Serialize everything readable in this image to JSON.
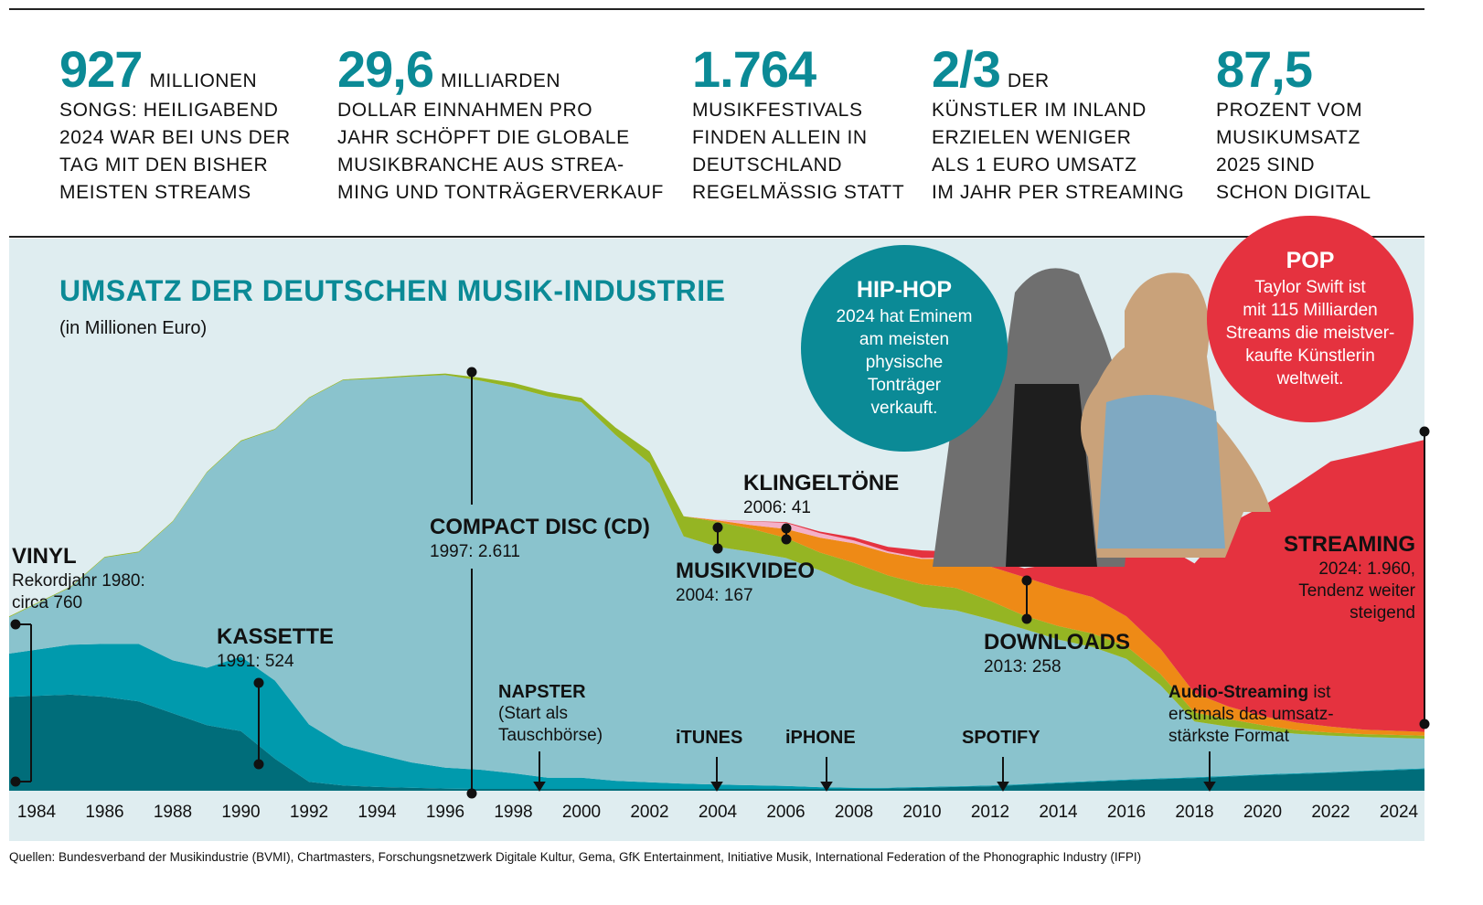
{
  "stats": [
    {
      "value": "927",
      "unit": "MILLIONEN",
      "text": "SONGS: HEILIGABEND\n2024 WAR BEI UNS DER\nTAG MIT DEN BISHER\nMEISTEN STREAMS"
    },
    {
      "value": "29,6",
      "unit": "MILLIARDEN",
      "text": "DOLLAR EINNAHMEN PRO\nJAHR SCHÖPFT DIE GLOBALE\nMUSIKBRANCHE AUS STREA-\nMING UND TONTRÄGERVERKAUF"
    },
    {
      "value": "1.764",
      "unit": "",
      "text": "MUSIKFESTIVALS\nFINDEN ALLEIN IN\nDEUTSCHLAND\nREGELMÄSSIG STATT"
    },
    {
      "value": "2/3",
      "unit": "DER",
      "text": "KÜNSTLER IM INLAND\nERZIELEN WENIGER\nALS 1 EURO UMSATZ\nIM JAHR PER STREAMING"
    },
    {
      "value": "87,5",
      "unit": "",
      "text": "PROZENT VOM\nMUSIKUMSATZ\n2025 SIND\nSCHON DIGITAL"
    }
  ],
  "bubbles": {
    "hiphop": {
      "title": "HIP-HOP",
      "text": "2024 hat Eminem\nam meisten\nphysische\nTonträger\nverkauft."
    },
    "pop": {
      "title": "POP",
      "text": "Taylor Swift ist\nmit 115 Milliarden\nStreams die meistver-\nkaufte Künstlerin\nweltweit."
    }
  },
  "events": {
    "napster": {
      "title": "NAPSTER",
      "text": "(Start als\nTauschbörse)"
    },
    "itunes": "iTUNES",
    "iphone": "iPHONE",
    "spotify": "SPOTIFY",
    "audio": {
      "bold": "Audio-Streaming",
      "text": " ist\nerstmals das umsatz-\nstärkste Format"
    }
  },
  "annotations": {
    "vinyl": {
      "title": "VINYL",
      "text": "Rekordjahr 1980:\ncirca 760"
    },
    "kassette": {
      "title": "KASSETTE",
      "text": "1991: 524"
    },
    "cd": {
      "title": "COMPACT DISC (CD)",
      "text": "1997: 2.611"
    },
    "musikvideo": {
      "title": "MUSIKVIDEO",
      "text": "2004: 167"
    },
    "klingeltoene": {
      "title": "KLINGELTÖNE",
      "text": "2006: 41"
    },
    "downloads": {
      "title": "DOWNLOADS",
      "text": "2013: 258"
    },
    "streaming": {
      "title": "STREAMING",
      "text": "2024: 1.960,\nTendenz weiter\nsteigend"
    }
  },
  "source": "Quellen: Bundesverband der Musikindustrie (BVMI), Chartmasters, Forschungsnetzwerk Digitale Kultur, Gema, GfK Entertainment, Initiative Musik, International Federation of the Phonographic Industry (IFPI)",
  "colors": {
    "teal": "#0b8a96",
    "vinyl": "#006d7a",
    "kassette": "#009aad",
    "cd": "#8ac3cd",
    "musikvideo": "#95b523",
    "downloads": "#ee8a16",
    "klingeltoene": "#f4b0c8",
    "streaming": "#e5323f",
    "panel": "#dfedf0"
  },
  "chart_data": {
    "type": "area",
    "stacked": true,
    "title": "UMSATZ DER DEUTSCHEN MUSIK-INDUSTRIE",
    "subtitle": "(in Millionen Euro)",
    "xlabel": "",
    "ylabel": "Millionen Euro",
    "ylim": [
      0,
      2810
    ],
    "xlim": [
      1984,
      2024
    ],
    "tick_labels": [
      "1984",
      "1986",
      "1988",
      "1990",
      "1992",
      "1994",
      "1996",
      "1998",
      "2000",
      "2002",
      "2004",
      "2006",
      "2008",
      "2010",
      "2012",
      "2014",
      "2016",
      "2018",
      "2020",
      "2022",
      "2024"
    ],
    "x": [
      1984,
      1985,
      1986,
      1987,
      1988,
      1989,
      1990,
      1991,
      1992,
      1993,
      1994,
      1995,
      1996,
      1997,
      1998,
      1999,
      2000,
      2001,
      2002,
      2003,
      2004,
      2005,
      2006,
      2007,
      2008,
      2009,
      2010,
      2011,
      2012,
      2013,
      2014,
      2015,
      2016,
      2017,
      2018,
      2019,
      2020,
      2021,
      2022,
      2023,
      2024
    ],
    "series": [
      {
        "name": "Vinyl",
        "key": "vinyl",
        "values": [
          630,
          645,
          630,
          600,
          520,
          440,
          400,
          215,
          60,
          35,
          25,
          20,
          15,
          12,
          12,
          12,
          12,
          12,
          12,
          12,
          12,
          12,
          12,
          12,
          12,
          15,
          20,
          25,
          30,
          40,
          50,
          60,
          70,
          78,
          85,
          95,
          105,
          112,
          120,
          130,
          145
        ]
      },
      {
        "name": "Kassette",
        "key": "kassette",
        "values": [
          290,
          335,
          355,
          385,
          355,
          385,
          500,
          524,
          385,
          270,
          220,
          170,
          140,
          130,
          105,
          75,
          75,
          55,
          45,
          35,
          30,
          25,
          20,
          12,
          8,
          5,
          5,
          5,
          5,
          5,
          5,
          5,
          5,
          5,
          5,
          5,
          5,
          5,
          5,
          5,
          5
        ]
      },
      {
        "name": "Compact Disc (CD)",
        "key": "cd",
        "values": [
          245,
          385,
          580,
          615,
          930,
          1310,
          1445,
          1685,
          2190,
          2450,
          2520,
          2590,
          2635,
          2611,
          2590,
          2560,
          2520,
          2320,
          2140,
          1660,
          1595,
          1565,
          1530,
          1455,
          1360,
          1290,
          1210,
          1180,
          1115,
          1040,
          960,
          900,
          810,
          625,
          375,
          330,
          295,
          265,
          245,
          225,
          200
        ]
      },
      {
        "name": "Musikvideo",
        "key": "musikvideo",
        "values": [
          5,
          5,
          5,
          5,
          5,
          5,
          5,
          5,
          5,
          5,
          8,
          8,
          10,
          20,
          30,
          30,
          30,
          50,
          80,
          135,
          167,
          155,
          135,
          120,
          150,
          135,
          150,
          150,
          125,
          90,
          90,
          90,
          85,
          75,
          60,
          50,
          35,
          25,
          20,
          20,
          20
        ]
      },
      {
        "name": "Downloads",
        "key": "downloads",
        "values": [
          0,
          0,
          0,
          0,
          0,
          0,
          0,
          0,
          0,
          0,
          0,
          0,
          0,
          0,
          0,
          0,
          0,
          0,
          0,
          0,
          10,
          25,
          60,
          100,
          130,
          150,
          170,
          200,
          230,
          258,
          255,
          245,
          200,
          170,
          130,
          85,
          60,
          50,
          40,
          30,
          25
        ]
      },
      {
        "name": "Klingeltöne",
        "key": "klingeltoene",
        "values": [
          0,
          0,
          0,
          0,
          0,
          0,
          0,
          0,
          0,
          0,
          0,
          0,
          0,
          0,
          0,
          0,
          0,
          0,
          0,
          0,
          5,
          25,
          41,
          30,
          20,
          12,
          8,
          5,
          0,
          0,
          0,
          0,
          0,
          0,
          0,
          0,
          0,
          0,
          0,
          0,
          0
        ]
      },
      {
        "name": "Streaming",
        "key": "streaming",
        "values": [
          0,
          0,
          0,
          0,
          0,
          0,
          0,
          0,
          0,
          0,
          0,
          0,
          0,
          0,
          0,
          0,
          0,
          0,
          0,
          0,
          0,
          2,
          5,
          10,
          20,
          30,
          50,
          40,
          50,
          60,
          165,
          290,
          460,
          705,
          870,
          1225,
          1410,
          1600,
          1780,
          1850,
          1960
        ]
      }
    ]
  }
}
